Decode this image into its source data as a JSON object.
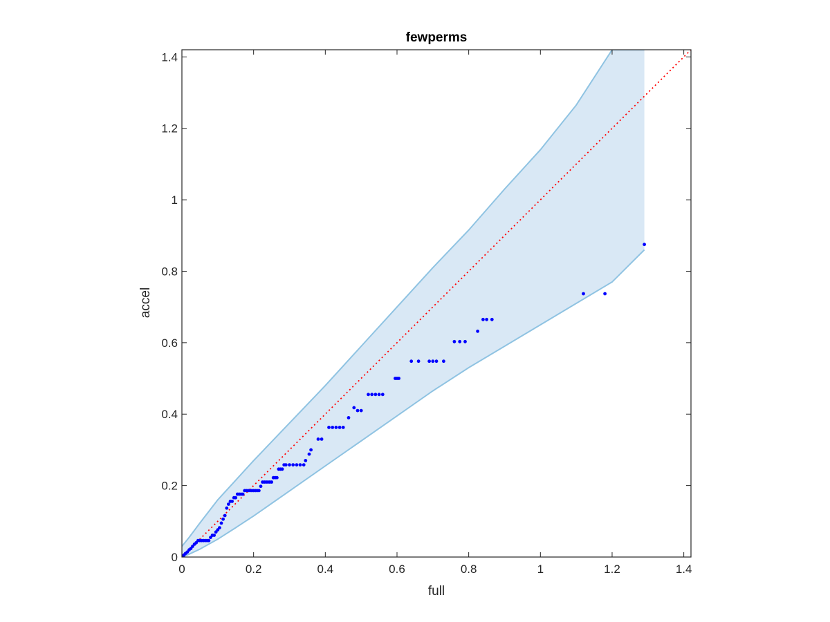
{
  "chart_data": {
    "type": "scatter",
    "title": "fewperms",
    "xlabel": "full",
    "ylabel": "accel",
    "xlim": [
      0,
      1.42
    ],
    "ylim": [
      0,
      1.42
    ],
    "xticks": [
      0,
      0.2,
      0.4,
      0.6,
      0.8,
      1,
      1.2,
      1.4
    ],
    "xtick_labels": [
      "0",
      "0.2",
      "0.4",
      "0.6",
      "0.8",
      "1",
      "1.2",
      "1.4"
    ],
    "yticks": [
      0,
      0.2,
      0.4,
      0.6,
      0.8,
      1,
      1.2,
      1.4
    ],
    "ytick_labels": [
      "0",
      "0.2",
      "0.4",
      "0.6",
      "0.8",
      "1",
      "1.2",
      "1.4"
    ],
    "grid": false,
    "colors": {
      "points": "#0000ff",
      "band_fill": "#d9e8f5",
      "band_edge": "#8fc3e2",
      "reference_line": "#ff0000",
      "axes": "#262626"
    },
    "reference_line": {
      "style": "dotted",
      "x": [
        0,
        1.42
      ],
      "y": [
        0,
        1.42
      ]
    },
    "band": {
      "x": [
        0,
        0.02,
        0.05,
        0.1,
        0.15,
        0.2,
        0.3,
        0.4,
        0.5,
        0.6,
        0.7,
        0.8,
        0.9,
        1.0,
        1.1,
        1.2,
        1.29
      ],
      "upper": [
        0.03,
        0.055,
        0.095,
        0.16,
        0.215,
        0.27,
        0.375,
        0.48,
        0.59,
        0.7,
        0.81,
        0.915,
        1.03,
        1.14,
        1.265,
        1.42,
        1.42
      ],
      "lower": [
        0,
        0.008,
        0.022,
        0.05,
        0.082,
        0.115,
        0.185,
        0.255,
        0.325,
        0.395,
        0.465,
        0.53,
        0.59,
        0.65,
        0.71,
        0.77,
        0.86
      ]
    },
    "points": [
      [
        0.003,
        0.003
      ],
      [
        0.006,
        0.006
      ],
      [
        0.01,
        0.01
      ],
      [
        0.015,
        0.014
      ],
      [
        0.02,
        0.02
      ],
      [
        0.025,
        0.024
      ],
      [
        0.03,
        0.03
      ],
      [
        0.035,
        0.036
      ],
      [
        0.04,
        0.04
      ],
      [
        0.045,
        0.046
      ],
      [
        0.05,
        0.046
      ],
      [
        0.055,
        0.046
      ],
      [
        0.06,
        0.046
      ],
      [
        0.065,
        0.046
      ],
      [
        0.07,
        0.046
      ],
      [
        0.075,
        0.046
      ],
      [
        0.08,
        0.055
      ],
      [
        0.085,
        0.061
      ],
      [
        0.09,
        0.061
      ],
      [
        0.095,
        0.07
      ],
      [
        0.1,
        0.076
      ],
      [
        0.105,
        0.082
      ],
      [
        0.11,
        0.095
      ],
      [
        0.115,
        0.106
      ],
      [
        0.12,
        0.116
      ],
      [
        0.125,
        0.137
      ],
      [
        0.13,
        0.148
      ],
      [
        0.135,
        0.156
      ],
      [
        0.14,
        0.156
      ],
      [
        0.145,
        0.166
      ],
      [
        0.15,
        0.166
      ],
      [
        0.155,
        0.176
      ],
      [
        0.16,
        0.176
      ],
      [
        0.165,
        0.176
      ],
      [
        0.17,
        0.176
      ],
      [
        0.175,
        0.186
      ],
      [
        0.18,
        0.186
      ],
      [
        0.185,
        0.186
      ],
      [
        0.19,
        0.186
      ],
      [
        0.195,
        0.186
      ],
      [
        0.2,
        0.186
      ],
      [
        0.205,
        0.186
      ],
      [
        0.21,
        0.186
      ],
      [
        0.215,
        0.186
      ],
      [
        0.22,
        0.198
      ],
      [
        0.225,
        0.21
      ],
      [
        0.23,
        0.21
      ],
      [
        0.235,
        0.21
      ],
      [
        0.24,
        0.21
      ],
      [
        0.245,
        0.21
      ],
      [
        0.25,
        0.21
      ],
      [
        0.255,
        0.222
      ],
      [
        0.26,
        0.222
      ],
      [
        0.265,
        0.222
      ],
      [
        0.27,
        0.246
      ],
      [
        0.275,
        0.246
      ],
      [
        0.28,
        0.246
      ],
      [
        0.285,
        0.258
      ],
      [
        0.29,
        0.258
      ],
      [
        0.3,
        0.258
      ],
      [
        0.31,
        0.258
      ],
      [
        0.32,
        0.258
      ],
      [
        0.33,
        0.258
      ],
      [
        0.34,
        0.258
      ],
      [
        0.345,
        0.27
      ],
      [
        0.355,
        0.288
      ],
      [
        0.36,
        0.3
      ],
      [
        0.38,
        0.33
      ],
      [
        0.39,
        0.33
      ],
      [
        0.41,
        0.363
      ],
      [
        0.42,
        0.363
      ],
      [
        0.43,
        0.363
      ],
      [
        0.44,
        0.363
      ],
      [
        0.45,
        0.363
      ],
      [
        0.465,
        0.39
      ],
      [
        0.48,
        0.418
      ],
      [
        0.49,
        0.41
      ],
      [
        0.5,
        0.41
      ],
      [
        0.52,
        0.455
      ],
      [
        0.53,
        0.455
      ],
      [
        0.54,
        0.455
      ],
      [
        0.55,
        0.455
      ],
      [
        0.56,
        0.455
      ],
      [
        0.595,
        0.5
      ],
      [
        0.6,
        0.5
      ],
      [
        0.605,
        0.5
      ],
      [
        0.64,
        0.548
      ],
      [
        0.66,
        0.548
      ],
      [
        0.69,
        0.548
      ],
      [
        0.7,
        0.548
      ],
      [
        0.71,
        0.548
      ],
      [
        0.73,
        0.548
      ],
      [
        0.76,
        0.603
      ],
      [
        0.775,
        0.603
      ],
      [
        0.79,
        0.603
      ],
      [
        0.825,
        0.632
      ],
      [
        0.84,
        0.665
      ],
      [
        0.85,
        0.665
      ],
      [
        0.865,
        0.665
      ],
      [
        1.12,
        0.737
      ],
      [
        1.18,
        0.737
      ],
      [
        1.29,
        0.875
      ]
    ]
  }
}
